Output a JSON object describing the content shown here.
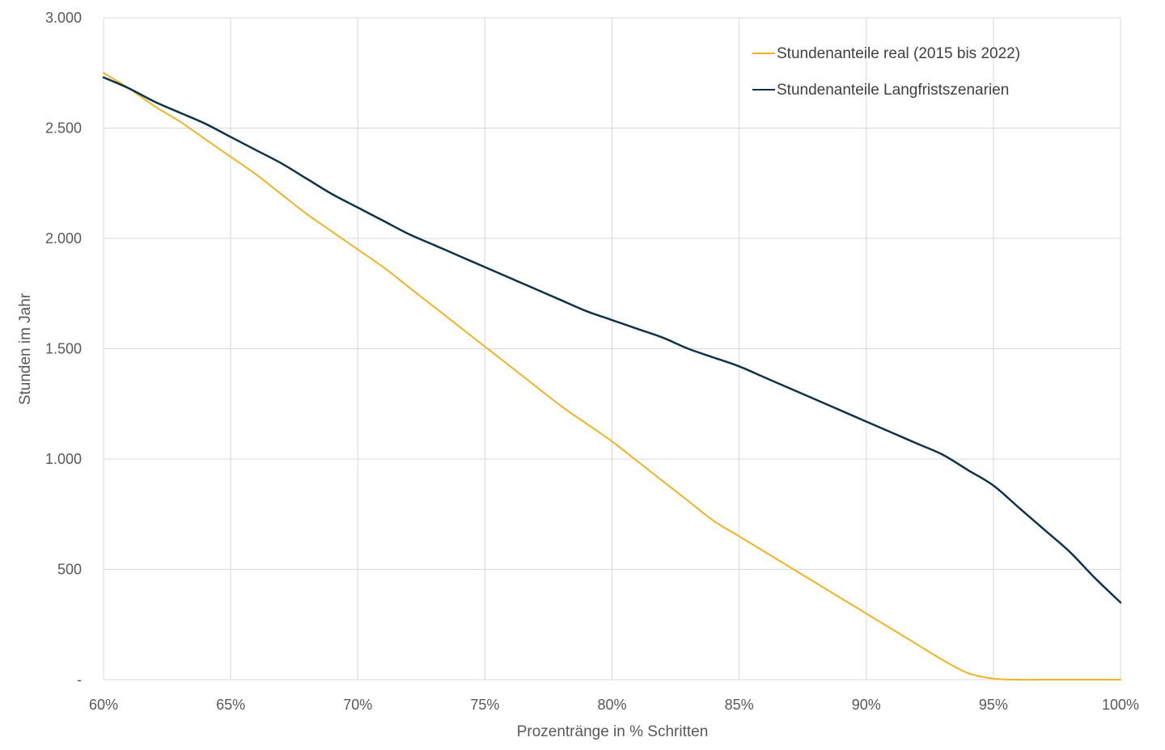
{
  "chart_data": {
    "type": "line",
    "xlabel": "Prozentränge in % Schritten",
    "ylabel": "Stunden im Jahr",
    "x": [
      60,
      61,
      62,
      63,
      64,
      65,
      66,
      67,
      68,
      69,
      70,
      71,
      72,
      73,
      74,
      75,
      76,
      77,
      78,
      79,
      80,
      81,
      82,
      83,
      84,
      85,
      86,
      87,
      88,
      89,
      90,
      91,
      92,
      93,
      94,
      95,
      96,
      97,
      98,
      99,
      100
    ],
    "x_tick_labels": [
      "60%",
      "65%",
      "70%",
      "75%",
      "80%",
      "85%",
      "90%",
      "95%",
      "100%"
    ],
    "x_ticks": [
      60,
      65,
      70,
      75,
      80,
      85,
      90,
      95,
      100
    ],
    "xlim": [
      60,
      100
    ],
    "y_tick_labels": [
      "-",
      "500",
      "1.000",
      "1.500",
      "2.000",
      "2.500",
      "3.000"
    ],
    "y_ticks": [
      0,
      500,
      1000,
      1500,
      2000,
      2500,
      3000
    ],
    "ylim": [
      0,
      3000
    ],
    "grid": true,
    "legend_position": "top-right",
    "series": [
      {
        "name": "Stundenanteile real (2015 bis 2022)",
        "color": "#f0b323",
        "values": [
          2750,
          2680,
          2600,
          2530,
          2450,
          2370,
          2290,
          2200,
          2110,
          2030,
          1950,
          1870,
          1780,
          1690,
          1600,
          1510,
          1420,
          1330,
          1240,
          1160,
          1080,
          990,
          900,
          810,
          720,
          650,
          580,
          510,
          440,
          370,
          300,
          230,
          160,
          90,
          30,
          5,
          0,
          0,
          0,
          0,
          0
        ]
      },
      {
        "name": "Stundenanteile Langfristszenarien",
        "color": "#0d3349",
        "values": [
          2730,
          2680,
          2620,
          2570,
          2520,
          2460,
          2400,
          2340,
          2270,
          2200,
          2140,
          2080,
          2020,
          1970,
          1920,
          1870,
          1820,
          1770,
          1720,
          1670,
          1630,
          1590,
          1550,
          1500,
          1460,
          1420,
          1370,
          1320,
          1270,
          1220,
          1170,
          1120,
          1070,
          1020,
          950,
          880,
          780,
          680,
          580,
          460,
          350
        ]
      }
    ]
  }
}
